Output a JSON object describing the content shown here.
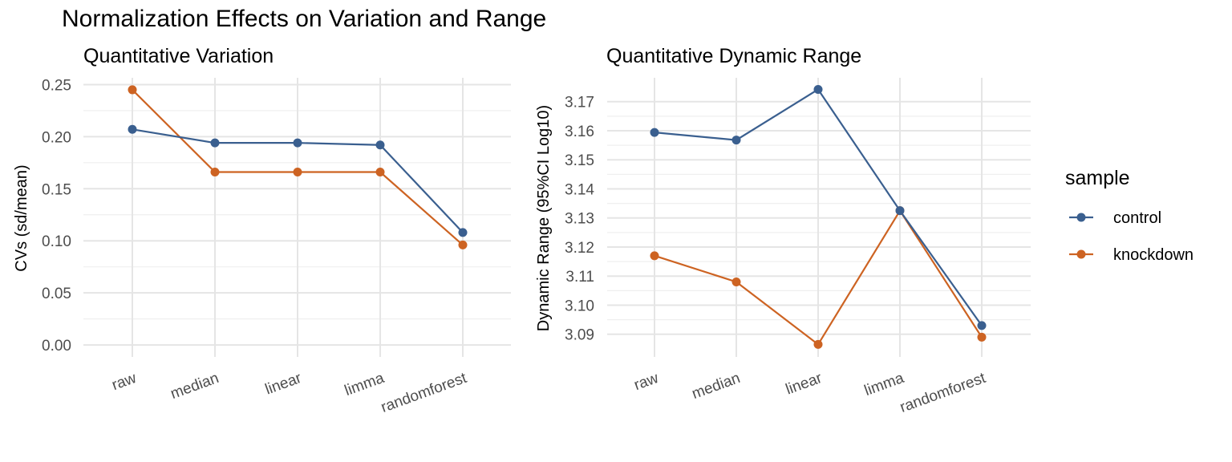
{
  "title": "Normalization Effects on Variation and Range",
  "colors": {
    "control": "#3a5f8f",
    "knockdown": "#cd6322"
  },
  "legend": {
    "title": "sample",
    "items": [
      {
        "label": "control",
        "color": "#3a5f8f"
      },
      {
        "label": "knockdown",
        "color": "#cd6322"
      }
    ]
  },
  "chart_data": [
    {
      "type": "line",
      "title": "Quantitative Variation",
      "xlabel": "",
      "ylabel": "CVs (sd/mean)",
      "categories": [
        "raw",
        "median",
        "linear",
        "limma",
        "randomforest"
      ],
      "ylim": [
        -0.0115,
        0.2565
      ],
      "yticks": [
        0.0,
        0.05,
        0.1,
        0.15,
        0.2,
        0.25
      ],
      "ytick_labels": [
        "0.00",
        "0.05",
        "0.10",
        "0.15",
        "0.20",
        "0.25"
      ],
      "grid": true,
      "series": [
        {
          "name": "control",
          "values": [
            0.207,
            0.194,
            0.194,
            0.192,
            0.108
          ]
        },
        {
          "name": "knockdown",
          "values": [
            0.245,
            0.166,
            0.166,
            0.166,
            0.096
          ]
        }
      ]
    },
    {
      "type": "line",
      "title": "Quantitative Dynamic Range",
      "xlabel": "",
      "ylabel": "Dynamic Range (95%CI Log10)",
      "categories": [
        "raw",
        "median",
        "linear",
        "limma",
        "randomforest"
      ],
      "ylim": [
        3.0822,
        3.1782
      ],
      "yticks": [
        3.09,
        3.1,
        3.11,
        3.12,
        3.13,
        3.14,
        3.15,
        3.16,
        3.17
      ],
      "ytick_labels": [
        "3.09",
        "3.10",
        "3.11",
        "3.12",
        "3.13",
        "3.14",
        "3.15",
        "3.16",
        "3.17"
      ],
      "grid": true,
      "series": [
        {
          "name": "control",
          "values": [
            3.1594,
            3.1568,
            3.1742,
            3.1325,
            3.093
          ]
        },
        {
          "name": "knockdown",
          "values": [
            3.117,
            3.108,
            3.0865,
            3.1325,
            3.089
          ]
        }
      ]
    }
  ]
}
